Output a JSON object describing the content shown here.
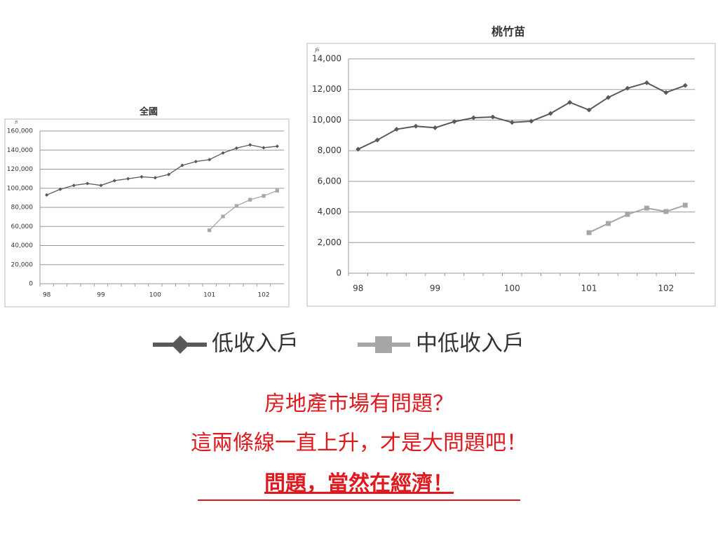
{
  "chart_data": [
    {
      "type": "line",
      "title": "全國",
      "y_unit": "戶",
      "categories": [
        "98",
        null,
        null,
        null,
        "99",
        null,
        null,
        null,
        "100",
        null,
        null,
        null,
        "101",
        null,
        null,
        null,
        "102",
        null
      ],
      "series": [
        {
          "name": "低收入戶",
          "color": "#595959",
          "marker": "diamond",
          "values": [
            93000,
            99000,
            103000,
            105000,
            103000,
            108000,
            110000,
            112000,
            111000,
            114500,
            124000,
            128000,
            130000,
            137000,
            142000,
            145500,
            142500,
            144000
          ]
        },
        {
          "name": "中低收入戶",
          "color": "#a6a6a6",
          "marker": "square",
          "values": [
            null,
            null,
            null,
            null,
            null,
            null,
            null,
            null,
            null,
            null,
            null,
            null,
            56000,
            70500,
            81500,
            88000,
            92000,
            97500
          ]
        }
      ],
      "ylim": [
        0,
        160000
      ],
      "yticks": [
        0,
        {
          "value": 20000,
          "label": "20,000"
        },
        {
          "value": 40000,
          "label": "40,000"
        },
        {
          "value": 60000,
          "label": "60,000"
        },
        {
          "value": 80000,
          "label": "80,000"
        },
        {
          "value": 100000,
          "label": "100,000"
        },
        {
          "value": 120000,
          "label": "120,000"
        },
        {
          "value": 140000,
          "label": "140,000"
        },
        {
          "value": 160000,
          "label": "160,000"
        }
      ],
      "grid": true
    },
    {
      "type": "line",
      "title": "桃竹苗",
      "y_unit": "戶",
      "categories": [
        "98",
        null,
        null,
        null,
        "99",
        null,
        null,
        null,
        "100",
        null,
        null,
        null,
        "101",
        null,
        null,
        null,
        "102",
        null
      ],
      "series": [
        {
          "color": "#595959",
          "marker": "diamond",
          "values": [
            8100,
            8700,
            9400,
            9600,
            9500,
            9900,
            10150,
            10200,
            9850,
            9930,
            10430,
            11160,
            10660,
            11480,
            12080,
            12440,
            11800,
            12260
          ]
        },
        {
          "color": "#a6a6a6",
          "marker": "square",
          "values": [
            null,
            null,
            null,
            null,
            null,
            null,
            null,
            null,
            null,
            null,
            null,
            null,
            2650,
            3250,
            3840,
            4250,
            4030,
            4440
          ]
        }
      ],
      "ylim": [
        0,
        14000
      ],
      "yticks": [
        0,
        {
          "value": 2000,
          "label": "2,000"
        },
        {
          "value": 4000,
          "label": "4,000"
        },
        {
          "value": 6000,
          "label": "6,000"
        },
        {
          "value": 8000,
          "label": "8,000"
        },
        {
          "value": 10000,
          "label": "10,000"
        },
        {
          "value": 12000,
          "label": "12,000"
        },
        {
          "value": 14000,
          "label": "14,000"
        }
      ],
      "grid": true
    }
  ],
  "message": {
    "lines": [
      "房地產市場有問題？",
      "這兩條線一直上升，才是大問題吧！"
    ],
    "conclusion": "問題，當然在經濟！"
  }
}
